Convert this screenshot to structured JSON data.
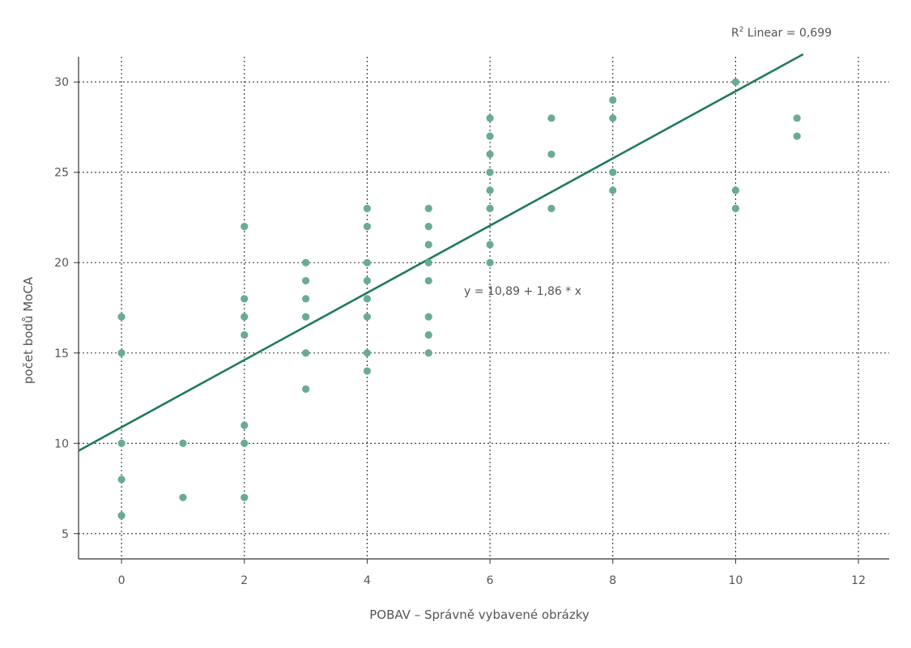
{
  "chart_data": {
    "type": "scatter",
    "xlabel": "POBAV – Správně vybavené obrázky",
    "ylabel": "počet bodů MoCA",
    "xlim": [
      -0.7,
      12.5
    ],
    "ylim": [
      3.6,
      31.4
    ],
    "xticks": [
      0,
      2,
      4,
      6,
      8,
      10,
      12
    ],
    "yticks": [
      5,
      10,
      15,
      20,
      25,
      30
    ],
    "grid": true,
    "colors": {
      "points": "#6aaa96",
      "fit_line": "#1f7a62",
      "grid": "#333333",
      "axis": "#333333"
    },
    "points": [
      [
        0,
        17
      ],
      [
        0,
        15
      ],
      [
        0,
        10
      ],
      [
        0,
        8
      ],
      [
        0,
        6
      ],
      [
        1,
        10
      ],
      [
        1,
        7
      ],
      [
        2,
        22
      ],
      [
        2,
        18
      ],
      [
        2,
        17
      ],
      [
        2,
        16
      ],
      [
        2,
        11
      ],
      [
        2,
        10
      ],
      [
        2,
        7
      ],
      [
        3,
        20
      ],
      [
        3,
        19
      ],
      [
        3,
        18
      ],
      [
        3,
        17
      ],
      [
        3,
        15
      ],
      [
        3,
        13
      ],
      [
        4,
        23
      ],
      [
        4,
        22
      ],
      [
        4,
        20
      ],
      [
        4,
        19
      ],
      [
        4,
        18
      ],
      [
        4,
        17
      ],
      [
        4,
        15
      ],
      [
        4,
        14
      ],
      [
        5,
        23
      ],
      [
        5,
        22
      ],
      [
        5,
        21
      ],
      [
        5,
        20
      ],
      [
        5,
        19
      ],
      [
        5,
        17
      ],
      [
        5,
        16
      ],
      [
        5,
        15
      ],
      [
        6,
        28
      ],
      [
        6,
        27
      ],
      [
        6,
        26
      ],
      [
        6,
        25
      ],
      [
        6,
        24
      ],
      [
        6,
        23
      ],
      [
        6,
        21
      ],
      [
        6,
        20
      ],
      [
        7,
        28
      ],
      [
        7,
        26
      ],
      [
        7,
        23
      ],
      [
        8,
        29
      ],
      [
        8,
        28
      ],
      [
        8,
        25
      ],
      [
        8,
        24
      ],
      [
        10,
        30
      ],
      [
        10,
        24
      ],
      [
        10,
        23
      ],
      [
        11,
        28
      ],
      [
        11,
        27
      ]
    ],
    "fit": {
      "intercept": 10.89,
      "slope": 1.86,
      "x_range": [
        -0.7,
        11.1
      ]
    },
    "annotations": {
      "r2_prefix": "R",
      "r2_sup": "2",
      "r2_suffix": " Linear = 0,699",
      "equation": "y = 10,89 + 1,86 * x"
    }
  }
}
